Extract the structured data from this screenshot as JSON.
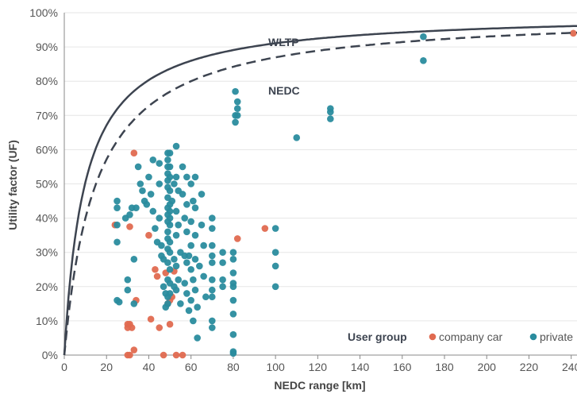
{
  "chart_data": {
    "type": "scatter",
    "xlabel": "NEDC range [km]",
    "ylabel": "Utility factor (UF)",
    "xlim": [
      0,
      245
    ],
    "ylim": [
      0,
      100
    ],
    "x_ticks": [
      "0",
      "20",
      "40",
      "60",
      "80",
      "100",
      "120",
      "140",
      "160",
      "180",
      "200",
      "220",
      "240"
    ],
    "y_ticks": [
      "0%",
      "10%",
      "20%",
      "30%",
      "40%",
      "50%",
      "60%",
      "70%",
      "80%",
      "90%",
      "100%"
    ],
    "curves": [
      {
        "name": "WLTP",
        "style": "solid",
        "color": "#3d4450",
        "k": 9.8
      },
      {
        "name": "NEDC",
        "style": "dashed",
        "color": "#3d4450",
        "k": 15.0
      }
    ],
    "legend": {
      "title": "User group",
      "position": "bottom-right",
      "entries": [
        "company car",
        "private"
      ]
    },
    "series": [
      {
        "name": "company car",
        "color": "#e06a50",
        "points": [
          [
            24,
            38
          ],
          [
            31,
            37.5
          ],
          [
            33,
            59
          ],
          [
            30,
            9
          ],
          [
            30,
            8
          ],
          [
            31,
            9
          ],
          [
            32,
            8
          ],
          [
            30,
            0
          ],
          [
            31,
            0
          ],
          [
            33,
            1.5
          ],
          [
            34,
            16
          ],
          [
            40,
            35
          ],
          [
            41,
            10.5
          ],
          [
            43,
            25
          ],
          [
            44,
            23
          ],
          [
            45,
            8
          ],
          [
            47,
            0
          ],
          [
            48,
            24
          ],
          [
            49,
            15
          ],
          [
            50,
            9
          ],
          [
            50,
            16
          ],
          [
            51,
            17
          ],
          [
            52,
            24.5
          ],
          [
            53,
            0
          ],
          [
            56,
            0
          ],
          [
            82,
            34
          ],
          [
            95,
            37
          ],
          [
            241,
            94
          ]
        ]
      },
      {
        "name": "private",
        "color": "#2a8c9e",
        "points": [
          [
            25,
            45
          ],
          [
            25,
            43
          ],
          [
            25,
            38
          ],
          [
            25,
            33
          ],
          [
            25,
            16
          ],
          [
            26,
            15.5
          ],
          [
            29,
            40
          ],
          [
            30,
            22
          ],
          [
            30,
            19
          ],
          [
            31,
            41
          ],
          [
            32,
            43
          ],
          [
            33,
            28
          ],
          [
            33,
            15
          ],
          [
            34,
            43
          ],
          [
            35,
            55
          ],
          [
            36,
            50
          ],
          [
            37,
            48
          ],
          [
            38,
            45
          ],
          [
            39,
            44
          ],
          [
            40,
            52
          ],
          [
            41,
            47
          ],
          [
            42,
            57
          ],
          [
            42,
            42
          ],
          [
            43,
            37
          ],
          [
            44,
            33
          ],
          [
            45,
            56
          ],
          [
            45,
            50
          ],
          [
            45,
            40
          ],
          [
            46,
            32
          ],
          [
            46,
            29
          ],
          [
            47,
            28
          ],
          [
            47,
            20
          ],
          [
            48,
            18
          ],
          [
            48,
            14
          ],
          [
            49,
            59
          ],
          [
            49,
            57
          ],
          [
            49,
            55
          ],
          [
            49,
            53
          ],
          [
            49,
            51
          ],
          [
            49,
            49
          ],
          [
            49,
            46
          ],
          [
            49,
            43
          ],
          [
            49,
            41
          ],
          [
            49,
            39
          ],
          [
            49,
            36
          ],
          [
            49,
            34
          ],
          [
            49,
            31
          ],
          [
            49,
            27
          ],
          [
            49,
            22
          ],
          [
            49,
            17
          ],
          [
            49,
            15
          ],
          [
            50,
            59
          ],
          [
            50,
            55
          ],
          [
            50,
            52
          ],
          [
            50,
            48
          ],
          [
            50,
            44
          ],
          [
            50,
            42
          ],
          [
            50,
            40
          ],
          [
            50,
            38
          ],
          [
            50,
            33
          ],
          [
            50,
            30
          ],
          [
            50,
            25
          ],
          [
            50,
            21
          ],
          [
            50,
            18
          ],
          [
            51,
            45
          ],
          [
            52,
            50
          ],
          [
            52,
            28
          ],
          [
            52,
            20
          ],
          [
            53,
            61
          ],
          [
            53,
            52
          ],
          [
            53,
            42
          ],
          [
            53,
            35
          ],
          [
            53,
            26
          ],
          [
            53,
            19
          ],
          [
            54,
            48
          ],
          [
            54,
            38
          ],
          [
            54,
            22
          ],
          [
            55,
            30
          ],
          [
            55,
            15
          ],
          [
            56,
            55
          ],
          [
            56,
            47
          ],
          [
            57,
            40
          ],
          [
            57,
            29
          ],
          [
            57,
            21
          ],
          [
            58,
            52
          ],
          [
            58,
            44
          ],
          [
            58,
            36
          ],
          [
            58,
            27
          ],
          [
            58,
            18
          ],
          [
            59,
            13
          ],
          [
            59,
            29
          ],
          [
            60,
            50
          ],
          [
            60,
            39
          ],
          [
            60,
            32
          ],
          [
            60,
            25
          ],
          [
            60,
            16
          ],
          [
            61,
            45
          ],
          [
            61,
            22
          ],
          [
            61,
            10
          ],
          [
            62,
            52
          ],
          [
            62,
            43
          ],
          [
            62,
            35
          ],
          [
            62,
            28
          ],
          [
            62,
            19
          ],
          [
            63,
            14
          ],
          [
            63,
            5
          ],
          [
            64,
            26
          ],
          [
            65,
            47
          ],
          [
            65,
            38
          ],
          [
            66,
            32
          ],
          [
            66,
            23
          ],
          [
            67,
            17
          ],
          [
            70,
            40
          ],
          [
            70,
            37
          ],
          [
            70,
            32
          ],
          [
            70,
            29
          ],
          [
            70,
            27
          ],
          [
            70,
            22
          ],
          [
            70,
            19
          ],
          [
            70,
            17
          ],
          [
            70,
            10
          ],
          [
            70,
            8
          ],
          [
            75,
            30
          ],
          [
            75,
            27
          ],
          [
            75,
            22
          ],
          [
            75,
            20
          ],
          [
            80,
            30
          ],
          [
            80,
            28
          ],
          [
            80,
            24
          ],
          [
            80,
            21
          ],
          [
            80,
            20
          ],
          [
            80,
            16
          ],
          [
            80,
            12
          ],
          [
            80,
            6
          ],
          [
            80,
            1
          ],
          [
            80,
            0.5
          ],
          [
            81,
            68
          ],
          [
            81,
            70
          ],
          [
            81,
            77
          ],
          [
            82,
            74
          ],
          [
            82,
            72
          ],
          [
            82,
            70
          ],
          [
            100,
            37
          ],
          [
            100,
            30
          ],
          [
            100,
            26
          ],
          [
            100,
            20
          ],
          [
            110,
            63.5
          ],
          [
            126,
            72
          ],
          [
            126,
            71
          ],
          [
            126,
            69
          ],
          [
            170,
            93
          ],
          [
            170,
            86
          ]
        ]
      }
    ]
  }
}
